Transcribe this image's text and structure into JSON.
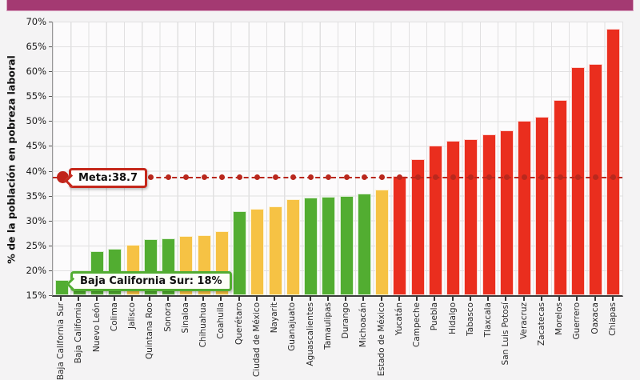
{
  "page": {
    "background_color": "#f4f3f4",
    "top_bar_color": "#a43a72"
  },
  "chart_data": {
    "type": "bar",
    "title": "",
    "xlabel": "",
    "ylabel": "% de la población en pobreza laboral",
    "ylim": [
      15,
      70
    ],
    "ytick_step": 5,
    "ytick_suffix": "%",
    "grid": true,
    "legend": false,
    "palette": {
      "green": "#52ad31",
      "orange": "#f6c244",
      "red": "#ea2e1e"
    },
    "meta_line": {
      "label": "Meta:38.7",
      "value": 38.7,
      "color": "#b9281d",
      "style": "dashed-with-dots"
    },
    "annotation": {
      "label": "Baja California Sur: 18%",
      "target_category": "Baja California Sur",
      "target_value": 18,
      "border_color": "#52ad31"
    },
    "categories": [
      "Baja California Sur",
      "Baja California",
      "Nuevo León",
      "Colima",
      "Jalisco",
      "Quintana Roo",
      "Sonora",
      "Sinaloa",
      "Chihuahua",
      "Coahuila",
      "Querétaro",
      "Ciudad de México",
      "Nayarit",
      "Guanajuato",
      "Aguascalientes",
      "Tamaulipas",
      "Durango",
      "Michoacán",
      "Estado de México",
      "Yucatán",
      "Campeche",
      "Puebla",
      "Hidalgo",
      "Tabasco",
      "Tlaxcala",
      "San Luis Potosí",
      "Veracruz",
      "Zacatecas",
      "Morelos",
      "Guerrero",
      "Oaxaca",
      "Chiapas"
    ],
    "values": [
      18.0,
      20.0,
      23.9,
      24.4,
      25.2,
      26.3,
      26.4,
      26.9,
      27.1,
      27.9,
      31.9,
      32.3,
      32.8,
      34.3,
      34.6,
      34.8,
      35.0,
      35.4,
      36.2,
      39.0,
      42.4,
      45.0,
      46.1,
      46.4,
      47.3,
      48.1,
      50.0,
      50.8,
      54.2,
      60.8,
      61.4,
      68.5
    ],
    "colors": [
      "green",
      "green",
      "green",
      "green",
      "orange",
      "green",
      "green",
      "orange",
      "orange",
      "orange",
      "green",
      "orange",
      "orange",
      "orange",
      "green",
      "green",
      "green",
      "green",
      "orange",
      "red",
      "red",
      "red",
      "red",
      "red",
      "red",
      "red",
      "red",
      "red",
      "red",
      "red",
      "red",
      "red"
    ]
  }
}
